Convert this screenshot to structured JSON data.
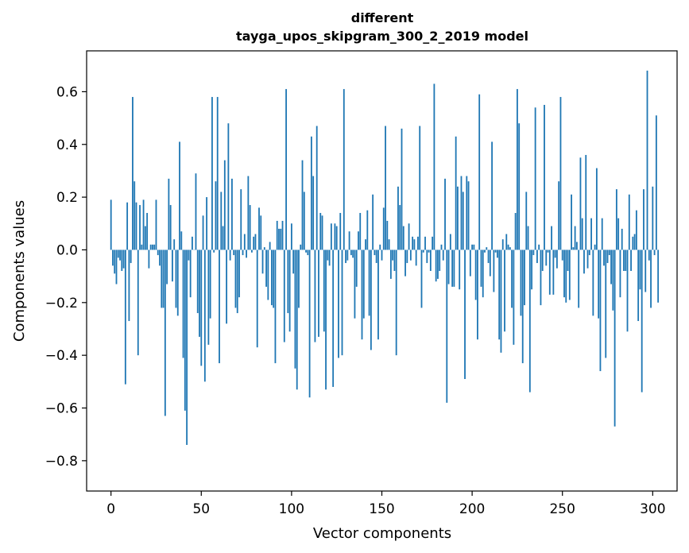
{
  "chart_data": {
    "type": "bar",
    "title_line1": "different",
    "title_line2": "tayga_upos_skipgram_300_2_2019 model",
    "xlabel": "Vector components",
    "ylabel": "Components values",
    "xlim": [
      -13.5,
      313.5
    ],
    "ylim": [
      -0.915,
      0.755
    ],
    "xticks": [
      0,
      50,
      100,
      150,
      200,
      250,
      300
    ],
    "xtick_labels": [
      "0",
      "50",
      "100",
      "150",
      "200",
      "250",
      "300"
    ],
    "yticks": [
      -0.8,
      -0.6,
      -0.4,
      -0.2,
      0.0,
      0.2,
      0.4,
      0.6
    ],
    "ytick_labels": [
      "−0.8",
      "−0.6",
      "−0.4",
      "−0.2",
      "0.0",
      "0.2",
      "0.4",
      "0.6"
    ],
    "bar_color": "#1f77b4",
    "values": [
      0.19,
      -0.06,
      -0.09,
      -0.13,
      -0.03,
      -0.04,
      -0.08,
      -0.07,
      -0.51,
      0.18,
      -0.27,
      -0.05,
      0.58,
      0.26,
      0.18,
      -0.4,
      0.17,
      0.02,
      0.19,
      0.09,
      0.14,
      -0.07,
      0.02,
      0.02,
      0.02,
      0.19,
      -0.02,
      -0.06,
      -0.22,
      -0.22,
      -0.63,
      -0.13,
      0.27,
      0.17,
      -0.12,
      0.04,
      -0.22,
      -0.25,
      0.41,
      0.07,
      -0.41,
      -0.61,
      -0.74,
      -0.04,
      -0.18,
      0.05,
      0.0,
      0.29,
      -0.24,
      -0.33,
      -0.44,
      0.13,
      -0.5,
      0.2,
      -0.36,
      -0.26,
      0.58,
      -0.01,
      0.26,
      0.58,
      -0.43,
      0.22,
      0.09,
      0.34,
      -0.28,
      0.48,
      -0.04,
      0.27,
      -0.02,
      -0.22,
      -0.24,
      -0.18,
      0.23,
      -0.02,
      0.06,
      -0.03,
      0.28,
      0.17,
      -0.01,
      0.05,
      0.06,
      -0.37,
      0.16,
      0.13,
      -0.09,
      0.01,
      -0.14,
      -0.19,
      0.03,
      -0.21,
      -0.22,
      -0.43,
      0.11,
      0.08,
      0.08,
      0.11,
      -0.35,
      0.61,
      -0.24,
      -0.31,
      0.1,
      -0.09,
      -0.45,
      -0.53,
      -0.22,
      0.02,
      0.34,
      0.22,
      -0.01,
      -0.02,
      -0.56,
      0.43,
      0.28,
      -0.35,
      0.47,
      -0.33,
      0.14,
      0.13,
      -0.31,
      -0.53,
      -0.04,
      -0.06,
      0.1,
      -0.52,
      0.1,
      0.09,
      -0.41,
      0.14,
      -0.4,
      0.61,
      -0.05,
      -0.04,
      0.07,
      -0.02,
      -0.03,
      -0.26,
      -0.14,
      0.07,
      0.14,
      -0.34,
      -0.26,
      0.04,
      0.15,
      -0.25,
      -0.38,
      0.21,
      -0.02,
      -0.05,
      -0.34,
      0.02,
      -0.04,
      0.16,
      0.47,
      0.11,
      0.04,
      -0.11,
      -0.04,
      -0.08,
      -0.4,
      0.24,
      0.17,
      0.46,
      0.09,
      -0.1,
      -0.05,
      0.1,
      -0.04,
      0.05,
      0.04,
      -0.06,
      0.05,
      0.47,
      -0.22,
      -0.01,
      0.05,
      -0.05,
      -0.01,
      -0.08,
      0.05,
      0.63,
      -0.12,
      -0.11,
      -0.08,
      0.02,
      -0.04,
      0.27,
      -0.58,
      -0.13,
      0.06,
      -0.14,
      -0.14,
      0.43,
      0.24,
      -0.15,
      0.28,
      0.22,
      -0.49,
      0.28,
      0.26,
      -0.1,
      0.02,
      0.02,
      -0.19,
      -0.34,
      0.59,
      -0.14,
      -0.18,
      -0.01,
      0.01,
      -0.05,
      -0.1,
      0.41,
      -0.16,
      -0.01,
      -0.03,
      -0.34,
      -0.39,
      0.04,
      -0.31,
      0.06,
      0.02,
      0.01,
      -0.22,
      -0.36,
      0.14,
      0.61,
      0.48,
      -0.25,
      -0.43,
      -0.21,
      0.22,
      0.09,
      -0.54,
      -0.15,
      -0.02,
      0.54,
      -0.05,
      0.02,
      -0.21,
      -0.08,
      0.55,
      -0.06,
      -0.01,
      -0.17,
      0.09,
      -0.17,
      -0.03,
      -0.07,
      0.26,
      0.58,
      -0.04,
      -0.18,
      -0.2,
      -0.08,
      -0.19,
      0.21,
      0.01,
      0.09,
      0.03,
      -0.22,
      0.35,
      0.12,
      -0.09,
      0.36,
      -0.07,
      -0.02,
      0.12,
      -0.25,
      0.02,
      0.31,
      -0.26,
      -0.46,
      0.12,
      -0.06,
      -0.41,
      -0.05,
      -0.02,
      -0.13,
      -0.23,
      -0.67,
      0.23,
      0.12,
      -0.18,
      0.08,
      -0.08,
      -0.08,
      -0.31,
      0.21,
      -0.08,
      0.05,
      0.06,
      0.15,
      -0.27,
      -0.15,
      -0.54,
      0.23,
      -0.16,
      0.68,
      -0.04,
      -0.22,
      0.24,
      -0.02,
      0.51,
      -0.2
    ]
  }
}
